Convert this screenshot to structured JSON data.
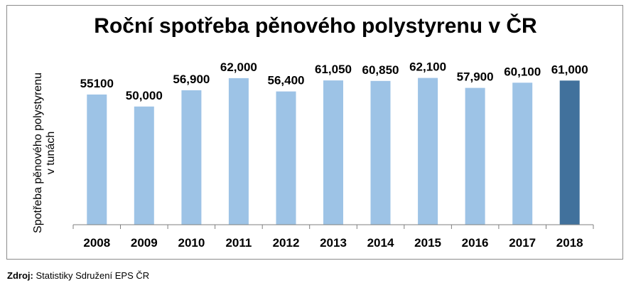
{
  "chart_data": {
    "type": "bar",
    "title": "Roční spotřeba pěnového polystyrenu v ČR",
    "ylabel": "Spotřeba pěnového polystyrenu v tunách",
    "xlabel": "",
    "categories": [
      "2008",
      "2009",
      "2010",
      "2011",
      "2012",
      "2013",
      "2014",
      "2015",
      "2016",
      "2017",
      "2018"
    ],
    "values": [
      55100,
      50000,
      56900,
      62000,
      56400,
      61050,
      60850,
      62100,
      57900,
      60100,
      61000
    ],
    "data_labels": [
      "55100",
      "50,000",
      "56,900",
      "62,000",
      "56,400",
      "61,050",
      "60,850",
      "62,100",
      "57,900",
      "60,100",
      "61,000"
    ],
    "ylim": [
      0,
      68000
    ],
    "grid": false,
    "legend": "none",
    "colors": {
      "bar": "#9dc3e6",
      "highlight_bar": "#41719c",
      "axis": "#7f7f7f"
    },
    "highlight_index": 10
  },
  "source": {
    "label": "Zdroj:",
    "text": "Statistiky Sdružení EPS ČR"
  }
}
